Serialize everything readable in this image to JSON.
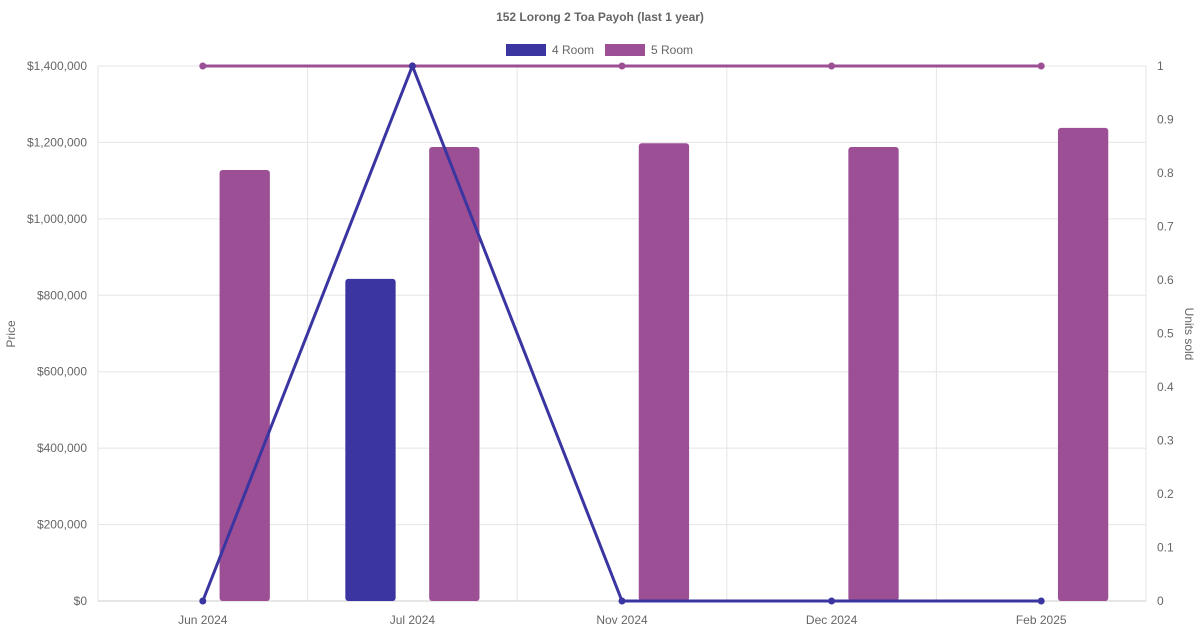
{
  "chart_data": {
    "type": "bar",
    "title": "152 Lorong 2 Toa Payoh (last 1 year)",
    "categories": [
      "Jun 2024",
      "Jul 2024",
      "Nov 2024",
      "Dec 2024",
      "Feb 2025"
    ],
    "y_left": {
      "label": "Price",
      "range": [
        0,
        1400000
      ],
      "ticks": [
        "$0",
        "$200,000",
        "$400,000",
        "$600,000",
        "$800,000",
        "$1,000,000",
        "$1,200,000",
        "$1,400,000"
      ]
    },
    "y_right": {
      "label": "Units sold",
      "range": [
        0,
        1
      ],
      "ticks": [
        "0",
        "0.1",
        "0.2",
        "0.3",
        "0.4",
        "0.5",
        "0.6",
        "0.7",
        "0.8",
        "0.9",
        "1"
      ]
    },
    "legend": {
      "placement": "top-center",
      "entries": [
        "4 Room",
        "5 Room"
      ]
    },
    "grid": true,
    "series": [
      {
        "name": "4 Room",
        "color": "#3a35a0",
        "price": [
          null,
          843000,
          null,
          null,
          null
        ],
        "units_sold": [
          0,
          1,
          0,
          0,
          0
        ]
      },
      {
        "name": "5 Room",
        "color": "#9c4f94",
        "price": [
          1128000,
          1188000,
          1198000,
          1188000,
          1238000
        ],
        "units_sold": [
          1,
          1,
          1,
          1,
          1
        ]
      }
    ]
  }
}
